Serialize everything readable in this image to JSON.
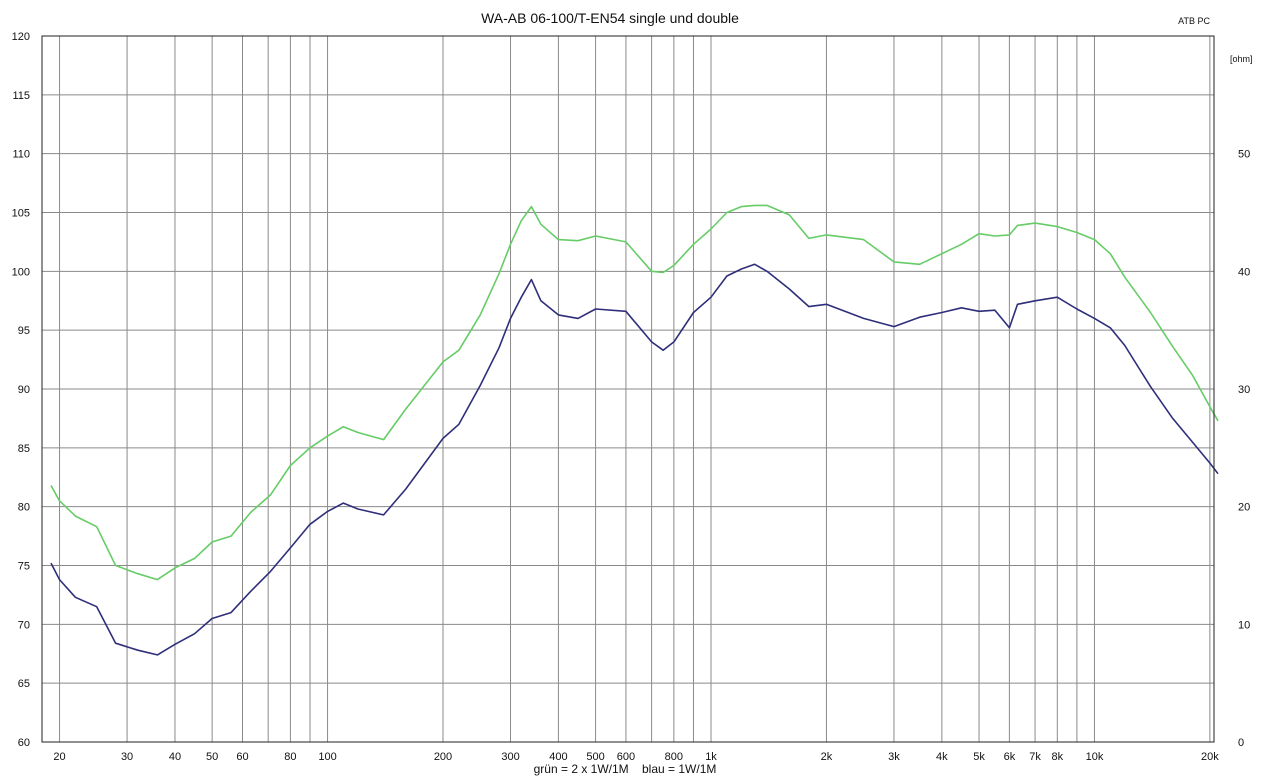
{
  "chart_data": {
    "type": "line",
    "title": "WA-AB 06-100/T-EN54 single und double",
    "badge": "ATB PC",
    "legend_note": "grün = 2 x 1W/1M    blau = 1W/1M",
    "x_scale": "log",
    "xlim": [
      18,
      20500
    ],
    "ylim": [
      60,
      120
    ],
    "y_ticks": [
      60,
      65,
      70,
      75,
      80,
      85,
      90,
      95,
      100,
      105,
      110,
      115,
      120
    ],
    "y_tick_labels": [
      "60",
      "65",
      "70",
      "75",
      "80",
      "85",
      "90",
      "95",
      "100",
      "105",
      "110",
      "115",
      "120"
    ],
    "right_axis_unit": "[ohm]",
    "right_axis_ticks": [
      0,
      10,
      20,
      30,
      40,
      50
    ],
    "right_axis_labels": [
      "0",
      "10",
      "20",
      "30",
      "40",
      "50"
    ],
    "x_ticks": [
      20,
      30,
      40,
      50,
      60,
      80,
      100,
      200,
      300,
      400,
      500,
      600,
      800,
      1000,
      2000,
      3000,
      4000,
      5000,
      6000,
      7000,
      8000,
      10000,
      20000
    ],
    "x_tick_labels": [
      "20",
      "30",
      "40",
      "50",
      "60",
      "80",
      "100",
      "200",
      "300",
      "400",
      "500",
      "600",
      "800",
      "1k",
      "2k",
      "3k",
      "4k",
      "5k",
      "6k",
      "7k",
      "8k",
      "10k",
      "20k"
    ],
    "x_gridlines": [
      20,
      30,
      40,
      50,
      60,
      70,
      80,
      90,
      100,
      200,
      300,
      400,
      500,
      600,
      700,
      800,
      900,
      1000,
      2000,
      3000,
      4000,
      5000,
      6000,
      7000,
      8000,
      9000,
      10000,
      20000
    ],
    "grid": true,
    "series": [
      {
        "color": "#66cc66",
        "x": [
          19,
          20,
          22,
          25,
          28,
          32,
          36,
          40,
          45,
          50,
          56,
          63,
          71,
          80,
          90,
          100,
          110,
          120,
          140,
          160,
          200,
          220,
          250,
          280,
          300,
          320,
          340,
          360,
          400,
          450,
          500,
          600,
          700,
          750,
          800,
          900,
          1000,
          1100,
          1200,
          1300,
          1400,
          1600,
          1800,
          2000,
          2500,
          3000,
          3500,
          4000,
          4500,
          5000,
          5500,
          6000,
          6300,
          7000,
          8000,
          9000,
          10000,
          11000,
          12000,
          14000,
          16000,
          18000,
          20000,
          21000
        ],
        "values": [
          81.8,
          80.5,
          79.2,
          78.3,
          75.0,
          74.3,
          73.8,
          74.8,
          75.6,
          77.0,
          77.5,
          79.5,
          81.0,
          83.5,
          85.0,
          86.0,
          86.8,
          86.3,
          85.7,
          88.3,
          92.3,
          93.3,
          96.3,
          99.8,
          102.3,
          104.3,
          105.5,
          104.0,
          102.7,
          102.6,
          103.0,
          102.5,
          100.0,
          99.9,
          100.5,
          102.3,
          103.6,
          105.0,
          105.5,
          105.6,
          105.6,
          104.8,
          102.8,
          103.1,
          102.7,
          100.8,
          100.6,
          101.5,
          102.3,
          103.2,
          103.0,
          103.1,
          103.9,
          104.1,
          103.8,
          103.3,
          102.7,
          101.5,
          99.5,
          96.5,
          93.6,
          91.2,
          88.5,
          87.3
        ]
      },
      {
        "color": "#2e2e7a",
        "x": [
          19,
          20,
          22,
          25,
          28,
          32,
          36,
          40,
          45,
          50,
          56,
          63,
          71,
          80,
          90,
          100,
          110,
          120,
          140,
          160,
          200,
          220,
          250,
          280,
          300,
          320,
          340,
          360,
          400,
          450,
          500,
          600,
          700,
          750,
          800,
          900,
          1000,
          1100,
          1200,
          1300,
          1400,
          1600,
          1800,
          2000,
          2500,
          3000,
          3500,
          4000,
          4500,
          5000,
          5500,
          6000,
          6300,
          7000,
          8000,
          9000,
          10000,
          11000,
          12000,
          14000,
          16000,
          18000,
          20000,
          21000
        ],
        "values": [
          75.2,
          73.8,
          72.3,
          71.5,
          68.4,
          67.8,
          67.4,
          68.3,
          69.2,
          70.5,
          71.0,
          72.8,
          74.5,
          76.5,
          78.5,
          79.6,
          80.3,
          79.8,
          79.3,
          81.5,
          85.8,
          87.0,
          90.3,
          93.5,
          96.0,
          97.8,
          99.3,
          97.5,
          96.3,
          96.0,
          96.8,
          96.6,
          94.0,
          93.3,
          94.0,
          96.5,
          97.8,
          99.6,
          100.2,
          100.6,
          100.0,
          98.5,
          97.0,
          97.2,
          96.0,
          95.3,
          96.1,
          96.5,
          96.9,
          96.6,
          96.7,
          95.2,
          97.2,
          97.5,
          97.8,
          96.8,
          96.0,
          95.2,
          93.7,
          90.2,
          87.5,
          85.5,
          83.7,
          82.8
        ]
      }
    ]
  }
}
